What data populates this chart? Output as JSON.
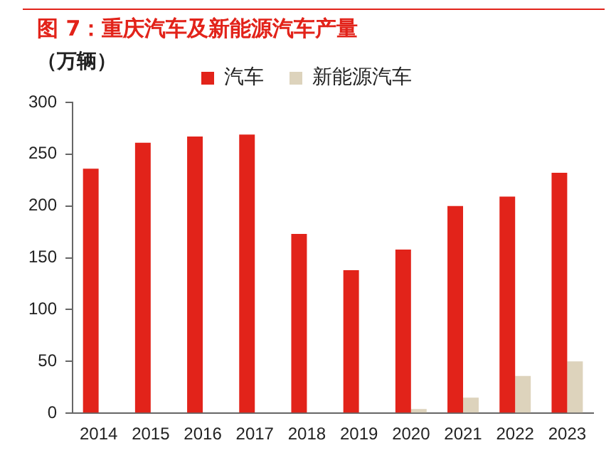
{
  "chart_data": {
    "type": "bar",
    "title": "图 7：重庆汽车及新能源汽车产量",
    "ylabel": "（万辆）",
    "categories": [
      "2014",
      "2015",
      "2016",
      "2017",
      "2018",
      "2019",
      "2020",
      "2021",
      "2022",
      "2023"
    ],
    "series": [
      {
        "name": "汽车",
        "color": "#e2231a",
        "values": [
          236,
          261,
          267,
          269,
          173,
          138,
          158,
          200,
          209,
          232
        ]
      },
      {
        "name": "新能源汽车",
        "color": "#ddd3bc",
        "values": [
          0,
          0,
          null,
          null,
          null,
          0,
          4,
          15,
          36,
          50
        ]
      }
    ],
    "ylim": [
      0,
      300
    ],
    "yticks": [
      0,
      50,
      100,
      150,
      200,
      250,
      300
    ],
    "grid": false,
    "legend": "top"
  }
}
